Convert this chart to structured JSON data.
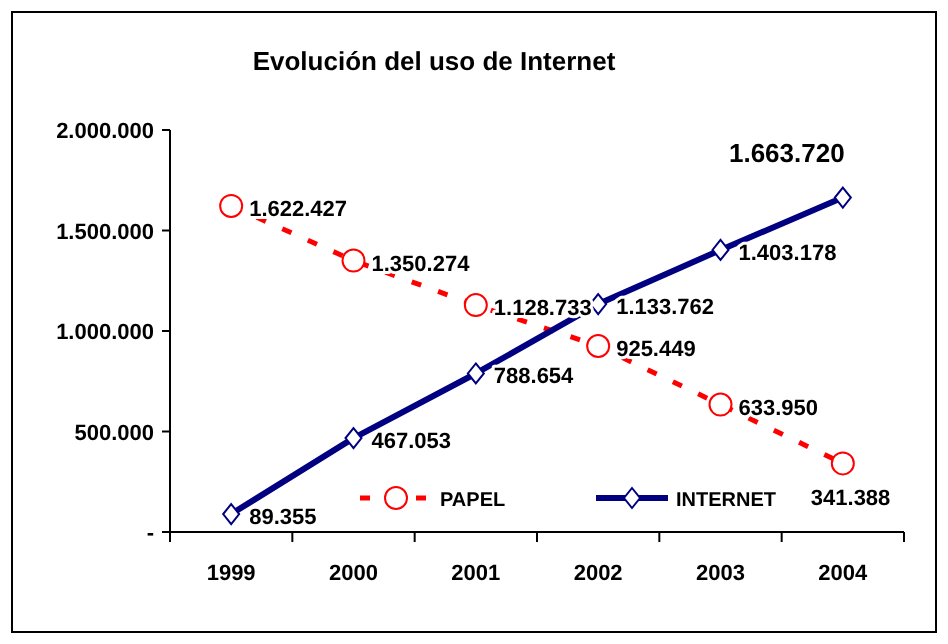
{
  "chart_data": {
    "type": "line",
    "title": "Evolución del uso de Internet",
    "categories": [
      "1999",
      "2000",
      "2001",
      "2002",
      "2003",
      "2004"
    ],
    "series": [
      {
        "name": "PAPEL",
        "color": "#ff0000",
        "values": [
          1622427,
          1350274,
          1128733,
          925449,
          633950,
          341388
        ],
        "marker": "circle",
        "line_style": "dashed",
        "value_labels": [
          "1.622.427",
          "1.350.274",
          "1.128.733",
          "925.449",
          "633.950",
          "341.388"
        ]
      },
      {
        "name": "INTERNET",
        "color": "#000080",
        "values": [
          89355,
          467053,
          788654,
          1133762,
          1403178,
          1663720
        ],
        "marker": "diamond",
        "line_style": "solid",
        "value_labels": [
          "89.355",
          "467.053",
          "788.654",
          "1.133.762",
          "1.403.178",
          "1.663.720"
        ]
      }
    ],
    "ylim": [
      0,
      2000000
    ],
    "yticks": [
      {
        "value": 0,
        "label": "-"
      },
      {
        "value": 500000,
        "label": "500.000"
      },
      {
        "value": 1000000,
        "label": "1.000.000"
      },
      {
        "value": 1500000,
        "label": "1.500.000"
      },
      {
        "value": 2000000,
        "label": "2.000.000"
      }
    ],
    "legend": "bottom",
    "grid": false
  }
}
